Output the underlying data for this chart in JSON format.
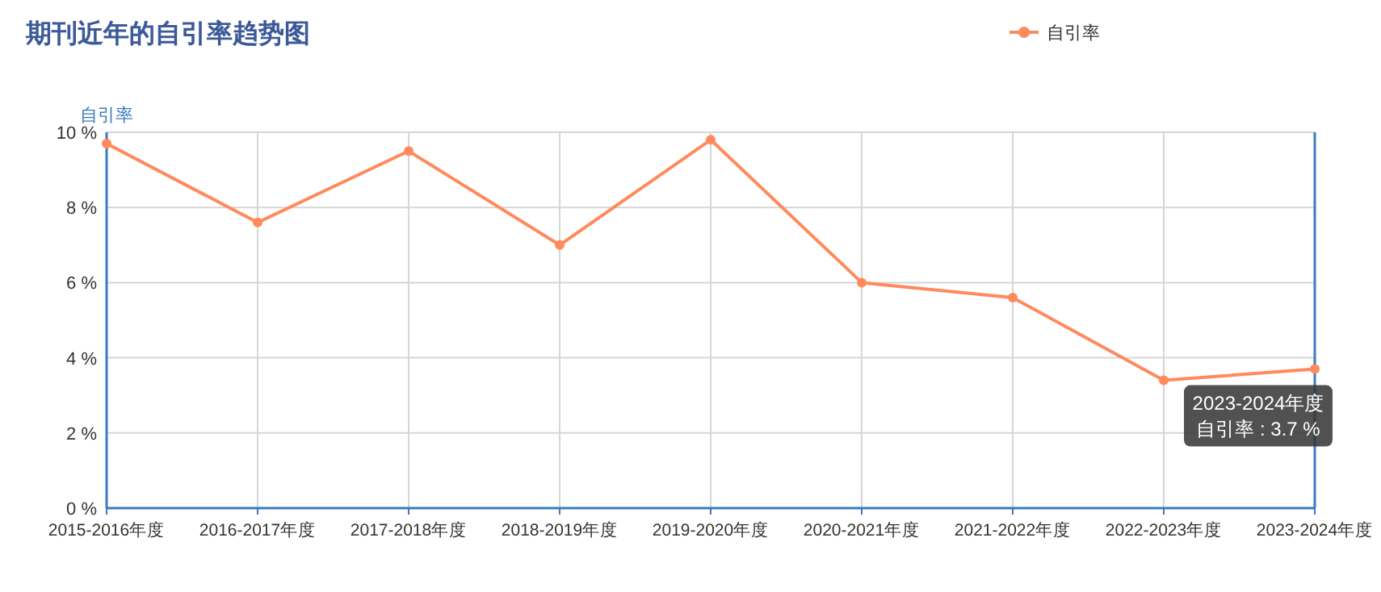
{
  "chart_data": {
    "type": "line",
    "title": "期刊近年的自引率趋势图",
    "ylabel": "自引率",
    "categories": [
      "2015-2016年度",
      "2016-2017年度",
      "2017-2018年度",
      "2018-2019年度",
      "2019-2020年度",
      "2020-2021年度",
      "2021-2022年度",
      "2022-2023年度",
      "2023-2024年度"
    ],
    "series": [
      {
        "name": "自引率",
        "color": "#ff8a5c",
        "values": [
          9.7,
          7.6,
          9.5,
          7.0,
          9.8,
          6.0,
          5.6,
          3.4,
          3.7
        ]
      }
    ],
    "ylim": [
      0,
      10
    ],
    "yticks": [
      {
        "value": 0,
        "label": "0 %"
      },
      {
        "value": 2,
        "label": "2 %"
      },
      {
        "value": 4,
        "label": "4 %"
      },
      {
        "value": 6,
        "label": "6 %"
      },
      {
        "value": 8,
        "label": "8 %"
      },
      {
        "value": 10,
        "label": "10 %"
      }
    ],
    "grid": true,
    "legend": "top right",
    "marker": "circle",
    "line_style": "solid",
    "annotations": [
      {
        "text": "2023-2024年度",
        "x": "2023-2024年度",
        "y": 3.7
      },
      {
        "text": "自引率 : 3.7 %",
        "x": "2023-2024年度",
        "y": 3.7
      }
    ]
  }
}
